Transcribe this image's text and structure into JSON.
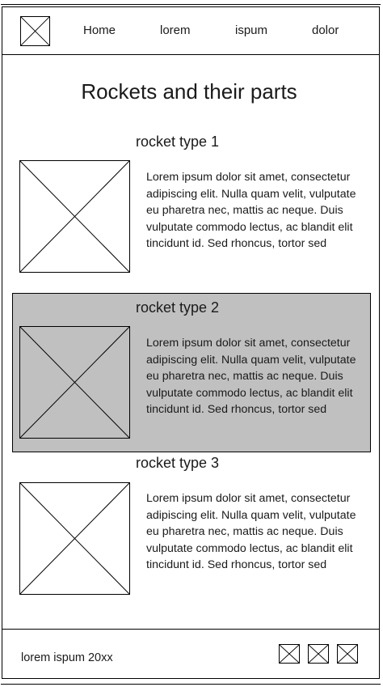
{
  "nav": {
    "logo_icon": "image-placeholder-icon",
    "links": [
      "Home",
      "lorem",
      "ispum",
      "dolor"
    ]
  },
  "page": {
    "title": "Rockets and their parts"
  },
  "sections": [
    {
      "title": "rocket type 1",
      "image_icon": "image-placeholder-icon",
      "body": "Lorem ipsum dolor sit amet, consectetur adipiscing elit. Nulla quam velit, vulputate eu pharetra nec, mattis ac neque. Duis vulputate commodo lectus, ac blandit elit tincidunt id. Sed rhoncus, tortor sed",
      "highlighted": false
    },
    {
      "title": "rocket type 2",
      "image_icon": "image-placeholder-icon",
      "body": "Lorem ipsum dolor sit amet, consectetur adipiscing elit. Nulla quam velit, vulputate eu pharetra nec, mattis ac neque. Duis vulputate commodo lectus, ac blandit elit tincidunt id. Sed rhoncus, tortor sed",
      "highlighted": true
    },
    {
      "title": "rocket type 3",
      "image_icon": "image-placeholder-icon",
      "body": "Lorem ipsum dolor sit amet, consectetur adipiscing elit. Nulla quam velit, vulputate eu pharetra nec, mattis ac neque. Duis vulputate commodo lectus, ac blandit elit tincidunt id. Sed rhoncus, tortor sed",
      "highlighted": false
    }
  ],
  "footer": {
    "text": "lorem ispum 20xx",
    "icons": [
      "social-icon-1",
      "social-icon-2",
      "social-icon-3"
    ]
  },
  "colors": {
    "highlight_bg": "#c0c0c0",
    "border": "#000000",
    "text": "#1a1a1a"
  }
}
